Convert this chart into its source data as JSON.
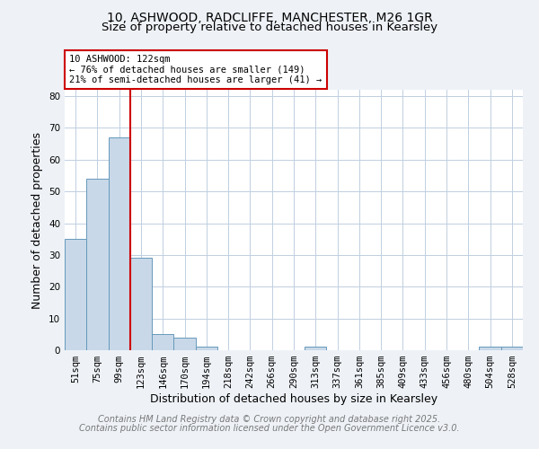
{
  "title1": "10, ASHWOOD, RADCLIFFE, MANCHESTER, M26 1GR",
  "title2": "Size of property relative to detached houses in Kearsley",
  "xlabel": "Distribution of detached houses by size in Kearsley",
  "ylabel": "Number of detached properties",
  "bar_labels": [
    "51sqm",
    "75sqm",
    "99sqm",
    "123sqm",
    "146sqm",
    "170sqm",
    "194sqm",
    "218sqm",
    "242sqm",
    "266sqm",
    "290sqm",
    "313sqm",
    "337sqm",
    "361sqm",
    "385sqm",
    "409sqm",
    "433sqm",
    "456sqm",
    "480sqm",
    "504sqm",
    "528sqm"
  ],
  "bar_values": [
    35,
    54,
    67,
    29,
    5,
    4,
    1,
    0,
    0,
    0,
    0,
    1,
    0,
    0,
    0,
    0,
    0,
    0,
    0,
    1,
    1
  ],
  "bar_color": "#c8d8e8",
  "bar_edge_color": "#6699bb",
  "vline_x": 2.5,
  "vline_color": "#cc0000",
  "annotation_text": "10 ASHWOOD: 122sqm\n← 76% of detached houses are smaller (149)\n21% of semi-detached houses are larger (41) →",
  "annotation_box_color": "#ffffff",
  "annotation_box_edge": "#cc0000",
  "ylim": [
    0,
    82
  ],
  "yticks": [
    0,
    10,
    20,
    30,
    40,
    50,
    60,
    70,
    80
  ],
  "footer1": "Contains HM Land Registry data © Crown copyright and database right 2025.",
  "footer2": "Contains public sector information licensed under the Open Government Licence v3.0.",
  "bg_color": "#eef2f7",
  "plot_bg_color": "#ffffff",
  "grid_color": "#c0cfe0",
  "title_fontsize": 10,
  "subtitle_fontsize": 9.5,
  "axis_label_fontsize": 9,
  "tick_fontsize": 7.5,
  "footer_fontsize": 7,
  "annotation_fontsize": 7.5
}
